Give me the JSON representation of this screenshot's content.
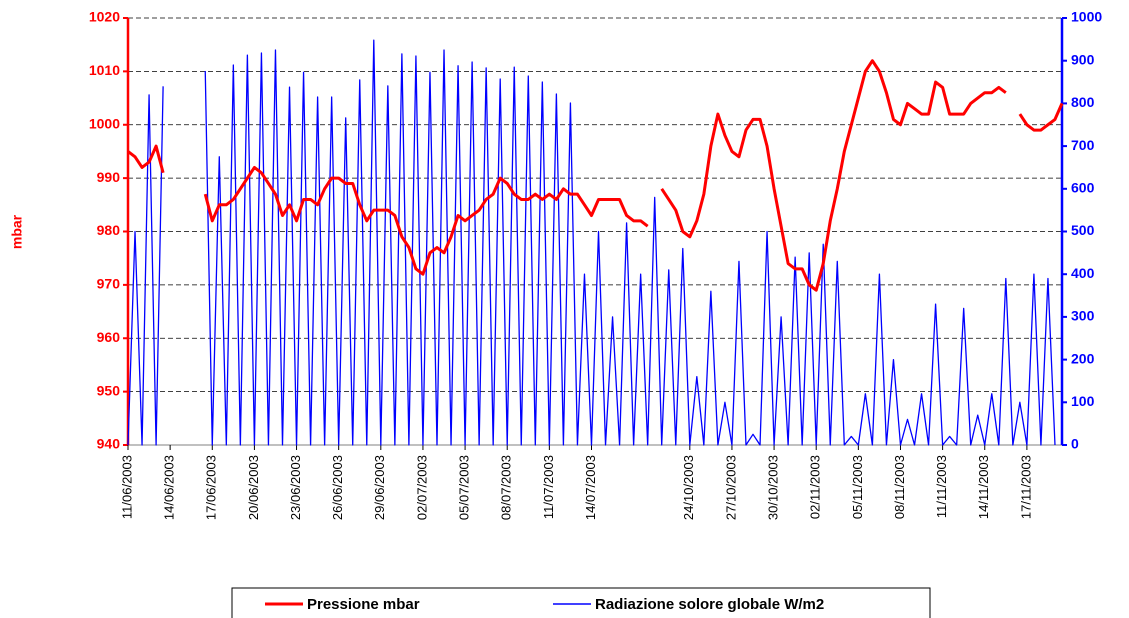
{
  "chart_data": {
    "type": "line",
    "y_label": "mbar",
    "ylim": [
      940,
      1020
    ],
    "yticks": [
      940,
      950,
      960,
      970,
      980,
      990,
      1000,
      1010,
      1020
    ],
    "y2lim": [
      0,
      1000
    ],
    "y2ticks": [
      0,
      100,
      200,
      300,
      400,
      500,
      600,
      700,
      800,
      900,
      1000
    ],
    "grid": true,
    "categories": [
      "11/06/2003",
      null,
      null,
      null,
      null,
      null,
      "14/06/2003",
      null,
      null,
      null,
      null,
      null,
      "17/06/2003",
      null,
      null,
      null,
      null,
      null,
      "20/06/2003",
      null,
      null,
      null,
      null,
      null,
      "23/06/2003",
      null,
      null,
      null,
      null,
      null,
      "26/06/2003",
      null,
      null,
      null,
      null,
      null,
      "29/06/2003",
      null,
      null,
      null,
      null,
      null,
      "02/07/2003",
      null,
      null,
      null,
      null,
      null,
      "05/07/2003",
      null,
      null,
      null,
      null,
      null,
      "08/07/2003",
      null,
      null,
      null,
      null,
      null,
      "11/07/2003",
      null,
      null,
      null,
      null,
      null,
      "14/07/2003",
      null,
      null,
      null,
      null,
      null,
      null,
      null,
      null,
      null,
      null,
      null,
      null,
      null,
      "24/10/2003",
      null,
      null,
      null,
      null,
      null,
      "27/10/2003",
      null,
      null,
      null,
      null,
      null,
      "30/10/2003",
      null,
      null,
      null,
      null,
      null,
      "02/11/2003",
      null,
      null,
      null,
      null,
      null,
      "05/11/2003",
      null,
      null,
      null,
      null,
      null,
      "08/11/2003",
      null,
      null,
      null,
      null,
      null,
      "11/11/2003",
      null,
      null,
      null,
      null,
      null,
      "14/11/2003",
      null,
      null,
      null,
      null,
      null,
      "17/11/2003",
      null,
      null,
      null,
      null,
      null
    ],
    "series": [
      {
        "name": "Pressione mbar",
        "color": "#ff0000",
        "axis": "y",
        "values": [
          995,
          994,
          992,
          993,
          996,
          991,
          null,
          null,
          null,
          null,
          null,
          987,
          982,
          985,
          985,
          986,
          988,
          990,
          992,
          991,
          989,
          987,
          983,
          985,
          982,
          986,
          986,
          985,
          988,
          990,
          990,
          989,
          989,
          985,
          982,
          984,
          984,
          984,
          983,
          979,
          977,
          973,
          972,
          976,
          977,
          976,
          979,
          983,
          982,
          983,
          984,
          986,
          987,
          990,
          989,
          987,
          986,
          986,
          987,
          986,
          987,
          986,
          988,
          987,
          987,
          985,
          983,
          986,
          986,
          986,
          986,
          983,
          982,
          982,
          981,
          null,
          988,
          986,
          984,
          980,
          979,
          982,
          987,
          996,
          1002,
          998,
          995,
          994,
          999,
          1001,
          1001,
          996,
          988,
          981,
          974,
          973,
          973,
          970,
          969,
          974,
          982,
          988,
          995,
          1000,
          1005,
          1010,
          1012,
          1010,
          1006,
          1001,
          1000,
          1004,
          1003,
          1002,
          1002,
          1008,
          1007,
          1002,
          1002,
          1002,
          1004,
          1005,
          1006,
          1006,
          1007,
          1006,
          null,
          1002,
          1000,
          999,
          999,
          1000,
          1001,
          1004
        ]
      },
      {
        "name": "Radiazione solore globale W/m2",
        "color": "#0000ff",
        "axis": "y2",
        "values": [
          0,
          500,
          0,
          820,
          0,
          840,
          null,
          null,
          null,
          null,
          null,
          876,
          0,
          675,
          0,
          890,
          0,
          913,
          0,
          918,
          0,
          925,
          0,
          838,
          0,
          873,
          0,
          815,
          0,
          815,
          0,
          766,
          0,
          855,
          0,
          948,
          0,
          841,
          0,
          916,
          0,
          911,
          0,
          873,
          0,
          925,
          0,
          888,
          0,
          897,
          0,
          883,
          0,
          857,
          0,
          885,
          0,
          864,
          0,
          850,
          0,
          822,
          0,
          801,
          0,
          400,
          0,
          500,
          0,
          300,
          0,
          520,
          0,
          400,
          0,
          580,
          0,
          410,
          0,
          460,
          0,
          160,
          0,
          360,
          0,
          100,
          0,
          430,
          0,
          25,
          0,
          500,
          0,
          300,
          0,
          440,
          0,
          450,
          0,
          470,
          0,
          430,
          0,
          20,
          0,
          120,
          0,
          400,
          0,
          200,
          0,
          60,
          0,
          120,
          0,
          330,
          0,
          20,
          0,
          320,
          0,
          70,
          0,
          120,
          0,
          390,
          0,
          100,
          0,
          400,
          0,
          390,
          0,
          null
        ]
      }
    ]
  }
}
